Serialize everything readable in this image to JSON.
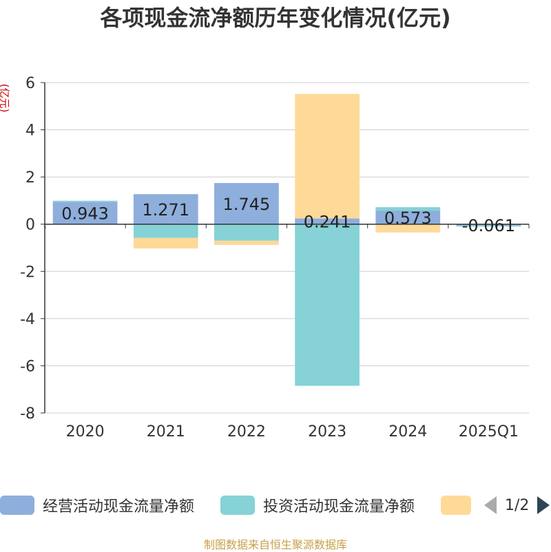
{
  "title": "各项现金流净额历年变化情况(亿元)",
  "y_unit": "(亿元)",
  "source": "制图数据来自恒生聚源数据库",
  "pager": {
    "page": "1/2"
  },
  "colors": {
    "operating": "#8eaedc",
    "investing": "#86d2d6",
    "financing": "#fed998",
    "axis": "#333333",
    "grid": "#cccccc"
  },
  "chart_data": {
    "type": "bar",
    "stacked": true,
    "categories": [
      "2020",
      "2021",
      "2022",
      "2023",
      "2024",
      "2025Q1"
    ],
    "ylim": [
      -8,
      6
    ],
    "yticks": [
      -8,
      -6,
      -4,
      -2,
      0,
      2,
      4,
      6
    ],
    "series": [
      {
        "name": "经营活动现金流量净额",
        "color": "#8eaedc",
        "values": [
          0.943,
          1.271,
          1.745,
          0.241,
          0.573,
          -0.061
        ],
        "labels": [
          "0.943",
          "1.271",
          "1.745",
          "0.241",
          "0.573",
          "-0.061"
        ]
      },
      {
        "name": "投资活动现金流量净额",
        "color": "#86d2d6",
        "values": [
          0.05,
          -0.58,
          -0.7,
          -6.85,
          0.15,
          -0.04
        ]
      },
      {
        "name": "",
        "color": "#fed998",
        "values": [
          0.0,
          -0.45,
          -0.18,
          5.28,
          -0.35,
          0.0
        ]
      }
    ],
    "grid": true,
    "legend": "bottom"
  }
}
